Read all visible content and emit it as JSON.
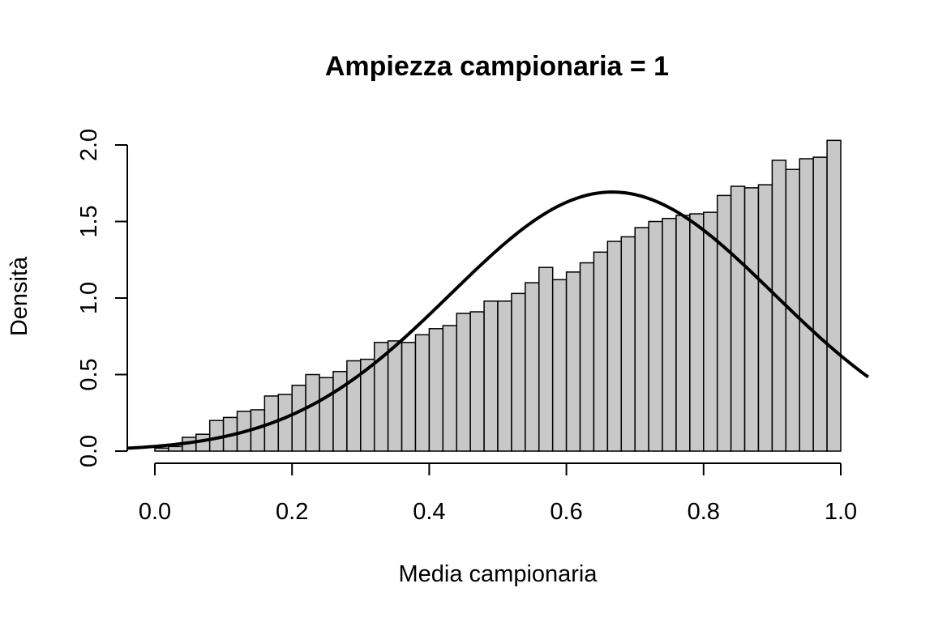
{
  "chart_data": {
    "type": "histogram",
    "title": "Ampiezza campionaria = 1",
    "xlabel": "Media campionaria",
    "ylabel": "Densità",
    "xlim": [
      -0.04,
      1.04
    ],
    "ylim": [
      0,
      2.0
    ],
    "x_ticks": [
      0.0,
      0.2,
      0.4,
      0.6,
      0.8,
      1.0
    ],
    "x_tick_labels": [
      "0.0",
      "0.2",
      "0.4",
      "0.6",
      "0.8",
      "1.0"
    ],
    "y_ticks": [
      0.0,
      0.5,
      1.0,
      1.5,
      2.0
    ],
    "y_tick_labels": [
      "0.0",
      "0.5",
      "1.0",
      "1.5",
      "2.0"
    ],
    "bin_width": 0.02,
    "bin_start": 0.0,
    "bar_fill": "#c8c8c8",
    "bar_stroke": "#000000",
    "curve_color": "#000000",
    "densities": [
      0.02,
      0.03,
      0.09,
      0.11,
      0.2,
      0.22,
      0.26,
      0.27,
      0.36,
      0.37,
      0.43,
      0.5,
      0.48,
      0.52,
      0.59,
      0.6,
      0.71,
      0.72,
      0.71,
      0.76,
      0.8,
      0.82,
      0.9,
      0.91,
      0.98,
      0.98,
      1.03,
      1.1,
      1.2,
      1.12,
      1.17,
      1.23,
      1.3,
      1.37,
      1.4,
      1.46,
      1.5,
      1.52,
      1.54,
      1.55,
      1.56,
      1.67,
      1.73,
      1.72,
      1.74,
      1.9,
      1.84,
      1.91,
      1.92,
      2.03
    ],
    "overlay_curve": {
      "type": "normal_density",
      "mean": 0.667,
      "sd": 0.2357,
      "x_from": -0.04,
      "x_to": 1.04
    }
  }
}
